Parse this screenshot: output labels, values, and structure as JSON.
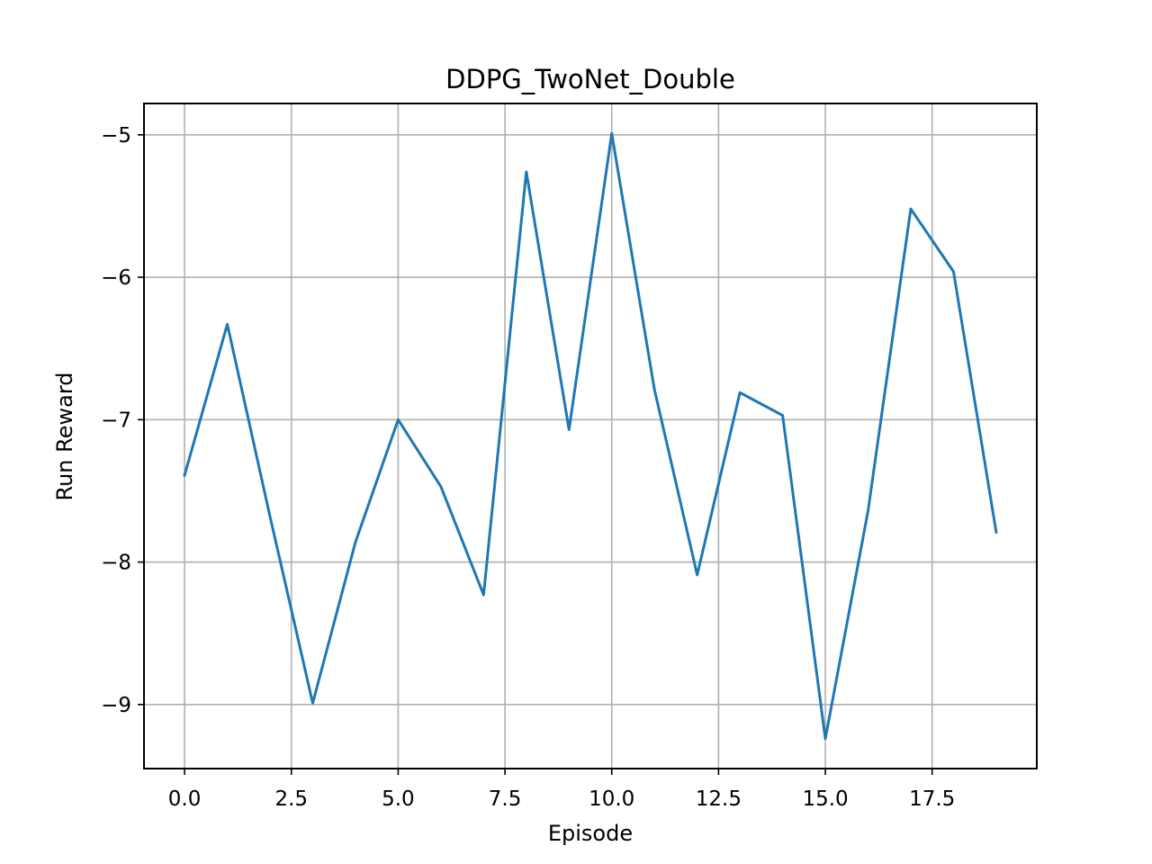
{
  "chart_data": {
    "type": "line",
    "title": "DDPG_TwoNet_Double",
    "xlabel": "Episode",
    "ylabel": "Run Reward",
    "xlim": [
      -0.95,
      19.95
    ],
    "ylim": [
      -9.45,
      -4.78
    ],
    "xticks": [
      0.0,
      2.5,
      5.0,
      7.5,
      10.0,
      12.5,
      15.0,
      17.5
    ],
    "xtick_labels": [
      "0.0",
      "2.5",
      "5.0",
      "7.5",
      "10.0",
      "12.5",
      "15.0",
      "17.5"
    ],
    "yticks": [
      -5,
      -6,
      -7,
      -8,
      -9
    ],
    "ytick_labels": [
      "−5",
      "−6",
      "−7",
      "−8",
      "−9"
    ],
    "grid": true,
    "series": [
      {
        "color": "#1f77b4",
        "x": [
          0,
          1,
          2,
          3,
          4,
          5,
          6,
          7,
          8,
          9,
          10,
          11,
          12,
          13,
          14,
          15,
          16,
          17,
          18,
          19
        ],
        "y": [
          -7.39,
          -6.33,
          -7.68,
          -8.99,
          -7.86,
          -7.0,
          -7.47,
          -8.23,
          -5.26,
          -7.07,
          -4.99,
          -6.79,
          -8.09,
          -6.81,
          -6.97,
          -9.24,
          -7.64,
          -5.52,
          -5.96,
          -7.79
        ]
      }
    ]
  }
}
